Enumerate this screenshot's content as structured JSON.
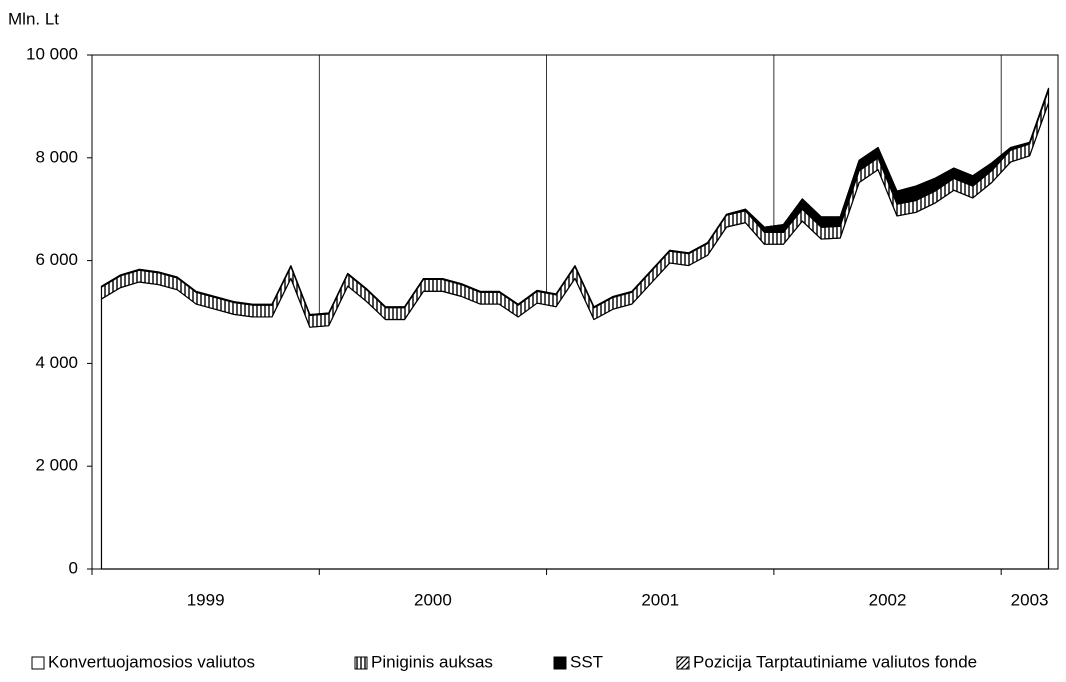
{
  "chart_data": {
    "type": "stacked-area",
    "y_label": "Mln. Lt",
    "categories": [
      null,
      null,
      null,
      null,
      null,
      null,
      null,
      null,
      null,
      null,
      null,
      null,
      null,
      null,
      null,
      null,
      null,
      null,
      null,
      null,
      null,
      null,
      null,
      null,
      null,
      null,
      null,
      null,
      null,
      null,
      null,
      null,
      null,
      null,
      null,
      null,
      null,
      null,
      null,
      null,
      null,
      null,
      null,
      null,
      null,
      null,
      null,
      null,
      null,
      null,
      null
    ],
    "groups": [
      {
        "label": "1999",
        "months": 12
      },
      {
        "label": "2000",
        "months": 12
      },
      {
        "label": "2001",
        "months": 12
      },
      {
        "label": "2002",
        "months": 12
      },
      {
        "label": "2003",
        "months": 3
      }
    ],
    "series": [
      {
        "name": "Konvertuojamosios valiutos",
        "color": "#ffffff",
        "pattern": "none",
        "values": [
          5254,
          5474,
          5584,
          5534,
          5434,
          5154,
          5054,
          4954,
          4904,
          4904,
          5654,
          4704,
          4734,
          5504,
          5204,
          4854,
          4854,
          5404,
          5404,
          5304,
          5154,
          5154,
          4904,
          5174,
          5104,
          5654,
          4854,
          5054,
          5154,
          5554,
          5954,
          5904,
          6104,
          6654,
          6739,
          6319,
          6319,
          6769,
          6419,
          6439,
          7519,
          7769,
          6869,
          6939,
          7119,
          7369,
          7219,
          7519,
          7919,
          8039,
          9069
        ]
      },
      {
        "name": "Piniginis auksas",
        "color": "#000000",
        "pattern": "vertical",
        "values": [
          230,
          230,
          230,
          230,
          230,
          230,
          230,
          230,
          230,
          230,
          230,
          230,
          230,
          230,
          230,
          230,
          230,
          230,
          230,
          230,
          230,
          230,
          230,
          230,
          230,
          230,
          230,
          230,
          230,
          230,
          230,
          230,
          230,
          230,
          230,
          230,
          230,
          230,
          230,
          230,
          230,
          230,
          230,
          230,
          230,
          230,
          230,
          230,
          230,
          230,
          250
        ]
      },
      {
        "name": "SST",
        "color": "#000000",
        "pattern": "solid",
        "values": [
          15,
          15,
          15,
          15,
          15,
          15,
          15,
          15,
          15,
          15,
          15,
          15,
          15,
          15,
          15,
          15,
          15,
          15,
          15,
          15,
          15,
          15,
          15,
          15,
          15,
          15,
          15,
          15,
          15,
          15,
          15,
          15,
          15,
          15,
          30,
          100,
          150,
          200,
          200,
          180,
          200,
          200,
          250,
          280,
          250,
          200,
          200,
          150,
          50,
          30,
          30
        ]
      },
      {
        "name": "Pozicija Tarptautiniame valiutos fonde",
        "color": "#000000",
        "pattern": "diagonal",
        "values": [
          1,
          1,
          1,
          1,
          1,
          1,
          1,
          1,
          1,
          1,
          1,
          1,
          1,
          1,
          1,
          1,
          1,
          1,
          1,
          1,
          1,
          1,
          1,
          1,
          1,
          1,
          1,
          1,
          1,
          1,
          1,
          1,
          1,
          1,
          1,
          1,
          1,
          1,
          1,
          1,
          1,
          1,
          1,
          1,
          1,
          1,
          1,
          1,
          1,
          1,
          1
        ]
      }
    ],
    "ylim": [
      0,
      10000
    ],
    "yticks": [
      0,
      {
        "value": 2000,
        "label": "2 000"
      },
      {
        "value": 4000,
        "label": "4 000"
      },
      {
        "value": 6000,
        "label": "6 000"
      },
      {
        "value": 8000,
        "label": "8 000"
      },
      {
        "value": 10000,
        "label": "10 000"
      }
    ],
    "grid": true,
    "legend": "bottom"
  }
}
